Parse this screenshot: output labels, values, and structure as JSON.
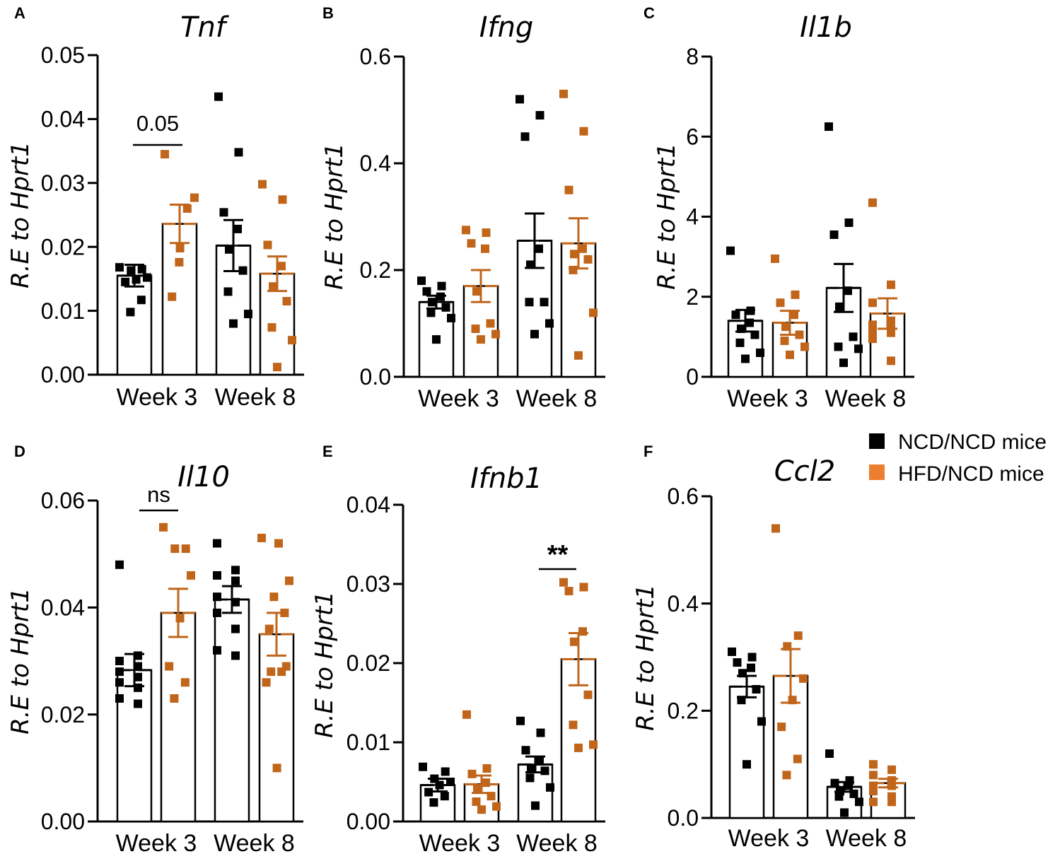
{
  "chart_data": [
    {
      "type": "bar",
      "panel": "A",
      "title": "Tnf",
      "ylabel": "R.E to Hprt1",
      "ylim": [
        0,
        0.05
      ],
      "yticks": [
        "0.00",
        "0.01",
        "0.02",
        "0.03",
        "0.04",
        "0.05"
      ],
      "xtick_labels": [
        "Week 3",
        "Week 8"
      ],
      "bars": [
        {
          "group": "NCD/NCD mice",
          "week": "Week 3",
          "mean": 0.0155,
          "sem": 0.0017,
          "points": [
            0.0168,
            0.0165,
            0.0163,
            0.0152,
            0.0149,
            0.0145,
            0.0117,
            0.0098
          ]
        },
        {
          "group": "HFD/NCD mice",
          "week": "Week 3",
          "mean": 0.0236,
          "sem": 0.003,
          "points": [
            0.0345,
            0.0277,
            0.026,
            0.0198,
            0.0176,
            0.0122
          ]
        },
        {
          "group": "NCD/NCD mice",
          "week": "Week 8",
          "mean": 0.0202,
          "sem": 0.004,
          "points": [
            0.0435,
            0.0348,
            0.0254,
            0.0228,
            0.0196,
            0.0163,
            0.013,
            0.0095,
            0.008
          ]
        },
        {
          "group": "HFD/NCD mice",
          "week": "Week 8",
          "mean": 0.0158,
          "sem": 0.0027,
          "points": [
            0.0298,
            0.0274,
            0.0203,
            0.017,
            0.0138,
            0.0115,
            0.0074,
            0.0054,
            0.0012
          ]
        }
      ],
      "annotation": {
        "text": "0.05",
        "between": [
          0,
          1
        ]
      }
    },
    {
      "type": "bar",
      "panel": "B",
      "title": "Ifng",
      "ylabel": "R.E to Hprt1",
      "ylim": [
        0,
        0.6
      ],
      "yticks": [
        "0.0",
        "0.2",
        "0.4",
        "0.6"
      ],
      "xtick_labels": [
        "Week 3",
        "Week 8"
      ],
      "bars": [
        {
          "group": "NCD/NCD mice",
          "week": "Week 3",
          "mean": 0.14,
          "sem": 0.012,
          "points": [
            0.18,
            0.17,
            0.16,
            0.15,
            0.14,
            0.13,
            0.12,
            0.11,
            0.07
          ]
        },
        {
          "group": "HFD/NCD mice",
          "week": "Week 3",
          "mean": 0.17,
          "sem": 0.03,
          "points": [
            0.275,
            0.27,
            0.25,
            0.24,
            0.16,
            0.1,
            0.09,
            0.08,
            0.07
          ]
        },
        {
          "group": "NCD/NCD mice",
          "week": "Week 8",
          "mean": 0.255,
          "sem": 0.051,
          "points": [
            0.52,
            0.49,
            0.45,
            0.24,
            0.21,
            0.14,
            0.14,
            0.1,
            0.08
          ]
        },
        {
          "group": "HFD/NCD mice",
          "week": "Week 8",
          "mean": 0.25,
          "sem": 0.047,
          "points": [
            0.53,
            0.46,
            0.35,
            0.24,
            0.23,
            0.22,
            0.2,
            0.12,
            0.04
          ]
        }
      ]
    },
    {
      "type": "bar",
      "panel": "C",
      "title": "Il1b",
      "ylabel": "R.E to Hprt1",
      "ylim": [
        0,
        8
      ],
      "yticks": [
        "0",
        "2",
        "4",
        "6",
        "8"
      ],
      "xtick_labels": [
        "Week 3",
        "Week 8"
      ],
      "bars": [
        {
          "group": "NCD/NCD mice",
          "week": "Week 3",
          "mean": 1.4,
          "sem": 0.27,
          "points": [
            3.15,
            1.65,
            1.55,
            1.35,
            1.2,
            1.05,
            0.85,
            0.6,
            0.45
          ]
        },
        {
          "group": "HFD/NCD mice",
          "week": "Week 3",
          "mean": 1.35,
          "sem": 0.3,
          "points": [
            2.95,
            2.05,
            1.85,
            1.55,
            1.25,
            1.05,
            0.9,
            0.75,
            0.55
          ]
        },
        {
          "group": "NCD/NCD mice",
          "week": "Week 8",
          "mean": 2.22,
          "sem": 0.6,
          "points": [
            6.25,
            3.85,
            3.55,
            2.15,
            1.75,
            1.0,
            0.75,
            0.7,
            0.35
          ]
        },
        {
          "group": "HFD/NCD mice",
          "week": "Week 8",
          "mean": 1.58,
          "sem": 0.38,
          "points": [
            4.35,
            2.3,
            1.85,
            1.4,
            1.3,
            1.2,
            1.15,
            1.1,
            0.95,
            0.4
          ]
        }
      ]
    },
    {
      "type": "bar",
      "panel": "D",
      "title": "Il10",
      "ylabel": "R.E to Hprt1",
      "ylim": [
        0,
        0.06
      ],
      "yticks": [
        "0.00",
        "0.02",
        "0.04",
        "0.06"
      ],
      "xtick_labels": [
        "Week 3",
        "Week 8"
      ],
      "bars": [
        {
          "group": "NCD/NCD mice",
          "week": "Week 3",
          "mean": 0.0283,
          "sem": 0.003,
          "points": [
            0.048,
            0.031,
            0.03,
            0.029,
            0.028,
            0.027,
            0.026,
            0.025,
            0.023,
            0.022
          ]
        },
        {
          "group": "HFD/NCD mice",
          "week": "Week 3",
          "mean": 0.039,
          "sem": 0.0045,
          "points": [
            0.055,
            0.051,
            0.051,
            0.046,
            0.038,
            0.029,
            0.026,
            0.023
          ]
        },
        {
          "group": "NCD/NCD mice",
          "week": "Week 8",
          "mean": 0.0415,
          "sem": 0.0025,
          "points": [
            0.052,
            0.047,
            0.046,
            0.045,
            0.042,
            0.041,
            0.039,
            0.036,
            0.032,
            0.031
          ]
        },
        {
          "group": "HFD/NCD mice",
          "week": "Week 8",
          "mean": 0.035,
          "sem": 0.004,
          "points": [
            0.053,
            0.052,
            0.045,
            0.042,
            0.039,
            0.036,
            0.029,
            0.028,
            0.028,
            0.026,
            0.01
          ]
        }
      ],
      "annotation": {
        "text": "ns",
        "between": [
          0,
          1
        ]
      }
    },
    {
      "type": "bar",
      "panel": "E",
      "title": "Ifnb1",
      "ylabel": "R.E to Hprt1",
      "ylim": [
        0,
        0.04
      ],
      "yticks": [
        "0.00",
        "0.01",
        "0.02",
        "0.03",
        "0.04"
      ],
      "xtick_labels": [
        "Week 3",
        "Week 8"
      ],
      "bars": [
        {
          "group": "NCD/NCD mice",
          "week": "Week 3",
          "mean": 0.0046,
          "sem": 0.0008,
          "points": [
            0.0069,
            0.0063,
            0.0054,
            0.005,
            0.0046,
            0.0037,
            0.0032,
            0.0024
          ]
        },
        {
          "group": "HFD/NCD mice",
          "week": "Week 3",
          "mean": 0.0047,
          "sem": 0.0011,
          "points": [
            0.0135,
            0.0067,
            0.006,
            0.0049,
            0.0042,
            0.0032,
            0.0025,
            0.0019,
            0.0015
          ]
        },
        {
          "group": "NCD/NCD mice",
          "week": "Week 8",
          "mean": 0.0072,
          "sem": 0.001,
          "points": [
            0.0127,
            0.0112,
            0.009,
            0.0076,
            0.0066,
            0.0064,
            0.0055,
            0.0043,
            0.002
          ]
        },
        {
          "group": "HFD/NCD mice",
          "week": "Week 8",
          "mean": 0.0205,
          "sem": 0.0033,
          "points": [
            0.0302,
            0.0296,
            0.0291,
            0.024,
            0.0227,
            0.016,
            0.0122,
            0.0097,
            0.0093
          ]
        }
      ],
      "annotation": {
        "text": "**",
        "between": [
          2,
          3
        ]
      }
    },
    {
      "type": "bar",
      "panel": "F",
      "title": "Ccl2",
      "ylabel": "R.E to Hprt1",
      "ylim": [
        0,
        0.6
      ],
      "yticks": [
        "0.0",
        "0.2",
        "0.4",
        "0.6"
      ],
      "xtick_labels": [
        "Week 3",
        "Week 8"
      ],
      "bars": [
        {
          "group": "NCD/NCD mice",
          "week": "Week 3",
          "mean": 0.245,
          "sem": 0.02,
          "points": [
            0.31,
            0.3,
            0.29,
            0.28,
            0.27,
            0.24,
            0.22,
            0.18,
            0.1
          ]
        },
        {
          "group": "HFD/NCD mice",
          "week": "Week 3",
          "mean": 0.265,
          "sem": 0.05,
          "points": [
            0.54,
            0.34,
            0.32,
            0.26,
            0.22,
            0.17,
            0.11,
            0.08
          ]
        },
        {
          "group": "NCD/NCD mice",
          "week": "Week 8",
          "mean": 0.058,
          "sem": 0.009,
          "points": [
            0.12,
            0.07,
            0.065,
            0.06,
            0.05,
            0.045,
            0.04,
            0.03,
            0.01
          ]
        },
        {
          "group": "HFD/NCD mice",
          "week": "Week 8",
          "mean": 0.065,
          "sem": 0.008,
          "points": [
            0.1,
            0.09,
            0.08,
            0.07,
            0.06,
            0.06,
            0.05,
            0.04,
            0.03,
            0.03
          ]
        }
      ]
    }
  ],
  "legend": {
    "items": [
      {
        "label": "NCD/NCD mice",
        "color": "#000000"
      },
      {
        "label": "HFD/NCD mice",
        "color": "#ED7D31"
      }
    ]
  },
  "colors": {
    "ncd": "#000000",
    "hfd": "#C0651A",
    "axis": "#000000",
    "bar_fill": "#ffffff"
  }
}
